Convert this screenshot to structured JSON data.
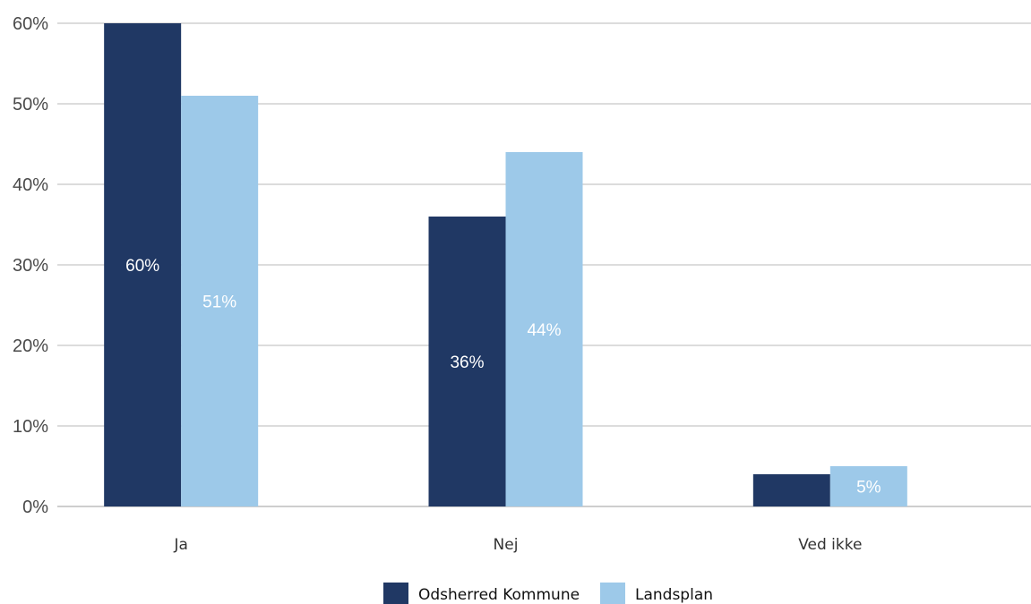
{
  "chart_data": {
    "type": "bar",
    "categories": [
      "Ja",
      "Nej",
      "Ved ikke"
    ],
    "series": [
      {
        "name": "Odsherred Kommune",
        "color": "#203864",
        "label_color": "#ffffff",
        "values": [
          60,
          36,
          4
        ],
        "data_labels": [
          "60%",
          "36%",
          ""
        ]
      },
      {
        "name": "Landsplan",
        "color": "#9dc9e9",
        "label_color": "#ffffff",
        "values": [
          51,
          44,
          5
        ],
        "data_labels": [
          "51%",
          "44%",
          "5%"
        ]
      }
    ],
    "ylim": [
      0,
      60
    ],
    "yticks": [
      0,
      10,
      20,
      30,
      40,
      50,
      60
    ],
    "ytick_labels": [
      "0%",
      "10%",
      "20%",
      "30%",
      "40%",
      "50%",
      "60%"
    ],
    "grid": true,
    "grid_color": "#c8c8c8",
    "legend_position": "bottom-center",
    "title": "",
    "xlabel": "",
    "ylabel": ""
  }
}
